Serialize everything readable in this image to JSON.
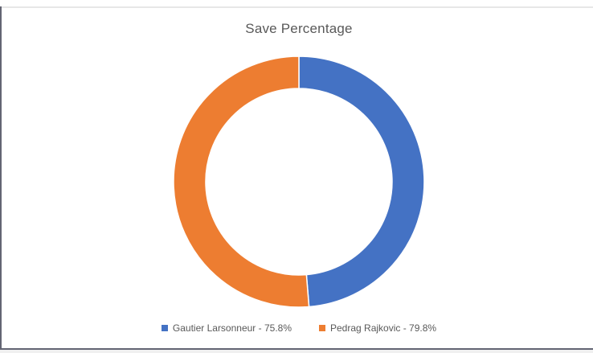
{
  "chart_data": {
    "type": "pie",
    "subtype": "donut",
    "title": "Save Percentage",
    "labels": [
      "Gautier Larsonneur",
      "Pedrag Rajkovic"
    ],
    "values": [
      75.8,
      79.8
    ],
    "value_unit": "%",
    "colors": [
      "#4472C4",
      "#ED7D31"
    ],
    "start_angle_deg": 0,
    "direction": "clockwise",
    "outer_radius": 156,
    "inner_radius": 116,
    "segment_gap_color": "#FFFFFF",
    "legend_position": "bottom"
  },
  "title": {
    "text": "Save Percentage",
    "color": "#595959"
  },
  "legend": {
    "items": [
      {
        "label": "Gautier Larsonneur - 75.8%",
        "color": "#4472C4"
      },
      {
        "label": "Pedrag Rajkovic - 79.8%",
        "color": "#ED7D31"
      }
    ]
  }
}
